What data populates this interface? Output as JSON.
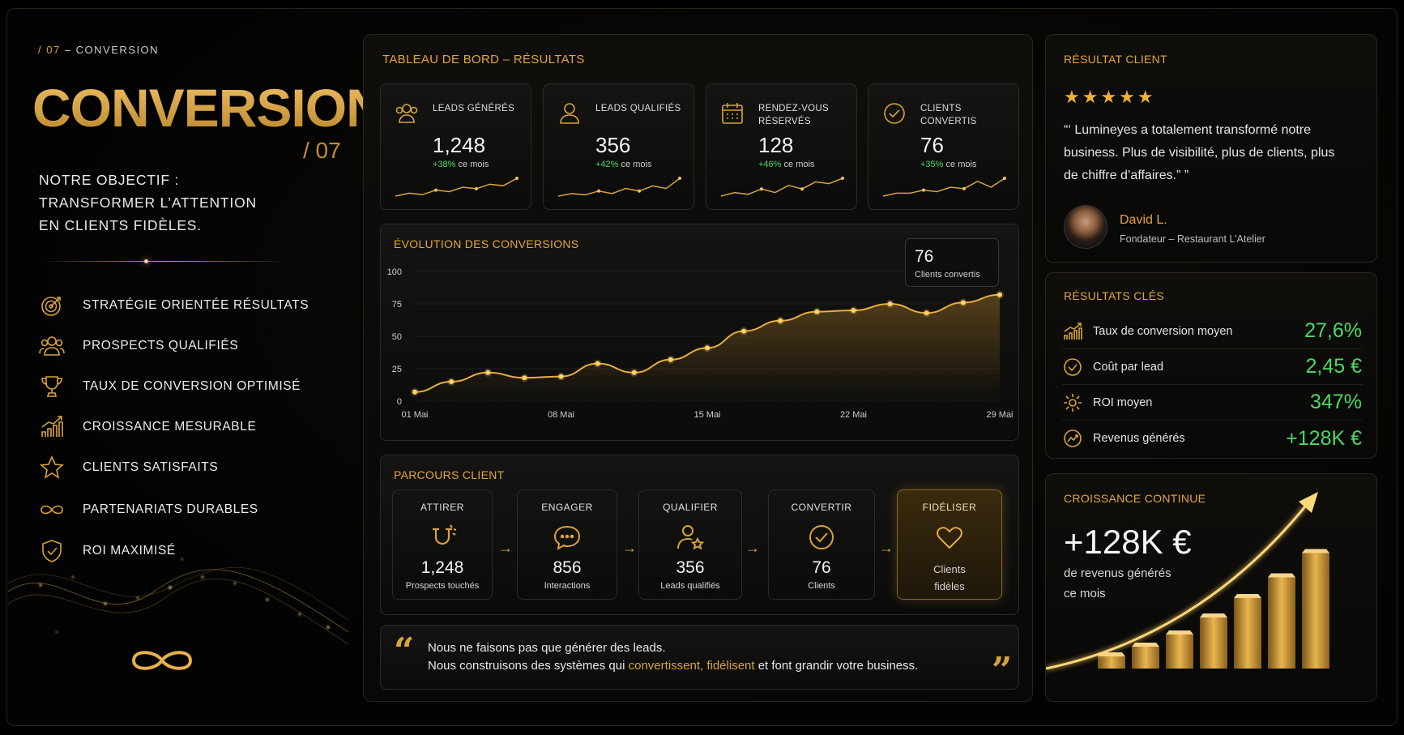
{
  "header": {
    "kicker_num": "/ 07",
    "kicker_text": "– CONVERSION",
    "title": "CONVERSION",
    "title_sub": "/ 07"
  },
  "objective": [
    "NOTRE OBJECTIF :",
    "TRANSFORMER L’ATTENTION",
    "EN CLIENTS FIDÈLES."
  ],
  "features": [
    {
      "label": "STRATÉGIE ORIENTÉE RÉSULTATS",
      "icon": "target-icon"
    },
    {
      "label": "PROSPECTS QUALIFIÉS",
      "icon": "users-icon"
    },
    {
      "label": "TAUX DE CONVERSION OPTIMISÉ",
      "icon": "trophy-icon"
    },
    {
      "label": "CROISSANCE MESURABLE",
      "icon": "growth-chart-icon"
    },
    {
      "label": "CLIENTS SATISFAITS",
      "icon": "star-icon"
    },
    {
      "label": "PARTENARIATS DURABLES",
      "icon": "infinity-icon"
    },
    {
      "label": "ROI MAXIMISÉ",
      "icon": "shield-check-icon"
    }
  ],
  "dashboard": {
    "title": "TABLEAU DE BORD – RÉSULTATS",
    "kpis": [
      {
        "label": "LEADS GÉNÉRÉS",
        "value": "1,248",
        "pct": "+38%",
        "suffix": "ce mois",
        "icon": "users-icon",
        "spark": [
          3,
          4,
          3.5,
          5,
          4.5,
          6,
          5.5,
          7,
          6.5,
          9
        ]
      },
      {
        "label": "LEADS QUALIFIÉS",
        "value": "356",
        "pct": "+42%",
        "suffix": "ce mois",
        "icon": "user-icon",
        "spark": [
          2,
          3,
          2.5,
          4,
          3,
          5,
          4,
          6,
          5,
          9
        ]
      },
      {
        "label": "RENDEZ-VOUS RÉSERVÉS",
        "value": "128",
        "pct": "+46%",
        "suffix": "ce mois",
        "icon": "calendar-icon",
        "spark": [
          3,
          4,
          3.5,
          5,
          4,
          6,
          5,
          7,
          6.5,
          8
        ]
      },
      {
        "label": "CLIENTS CONVERTIS",
        "value": "76",
        "pct": "+35%",
        "suffix": "ce mois",
        "icon": "check-circle-icon",
        "spark": [
          2,
          3,
          3,
          4,
          3.5,
          5,
          4.5,
          7,
          5,
          8
        ]
      }
    ],
    "evolution": {
      "title": "ÉVOLUTION DES CONVERSIONS",
      "tooltip_value": "76",
      "tooltip_label": "Clients convertis"
    },
    "parcours": {
      "title": "PARCOURS CLIENT",
      "steps": [
        {
          "title": "ATTIRER",
          "value": "1,248",
          "sub": "Prospects touchés",
          "icon": "magnet-icon"
        },
        {
          "title": "ENGAGER",
          "value": "856",
          "sub": "Interactions",
          "icon": "chat-icon"
        },
        {
          "title": "QUALIFIER",
          "value": "356",
          "sub": "Leads qualifiés",
          "icon": "user-star-icon"
        },
        {
          "title": "CONVERTIR",
          "value": "76",
          "sub": "Clients",
          "icon": "check-circle-icon"
        },
        {
          "title": "FIDÉLISER",
          "value": "Clients",
          "sub": "fidèles",
          "icon": "heart-icon"
        }
      ]
    },
    "quote": {
      "line1": "Nous ne faisons pas que générer des leads.",
      "line2_a": "Nous construisons des systèmes qui ",
      "line2_h1": "convertissent",
      "line2_sep": ", ",
      "line2_h2": "fidélisent",
      "line2_b": " et font grandir votre business."
    }
  },
  "testimonial": {
    "title": "RÉSULTAT CLIENT",
    "stars": 5,
    "quote": "“‘ Lumineyes a totalement transformé notre business. Plus de visibilité, plus de clients, plus de chiffre d’affaires.” ”",
    "author": "David L.",
    "role": "Fondateur – Restaurant L’Atelier"
  },
  "key_results": {
    "title": "RÉSULTATS CLÉS",
    "rows": [
      {
        "label": "Taux de conversion moyen",
        "value": "27,6%",
        "icon": "bar-growth-icon"
      },
      {
        "label": "Coût par lead",
        "value": "2,45 €",
        "icon": "check-circle-icon"
      },
      {
        "label": "ROI moyen",
        "value": "347%",
        "icon": "gear-icon"
      },
      {
        "label": "Revenus générés",
        "value": "+128K €",
        "icon": "trend-icon"
      }
    ]
  },
  "growth": {
    "title": "CROISSANCE CONTINUE",
    "value": "+128K €",
    "sub1": "de revenus générés",
    "sub2": "ce mois",
    "bars": [
      0.1,
      0.18,
      0.28,
      0.42,
      0.58,
      0.75,
      0.95
    ]
  },
  "colors": {
    "accent": "#d9a33a",
    "positive": "#4cd964",
    "background": "#000000"
  },
  "chart_data": {
    "type": "line",
    "title": "ÉVOLUTION DES CONVERSIONS",
    "x": [
      "01 Mai",
      "03 Mai",
      "05 Mai",
      "07 Mai",
      "08 Mai",
      "10 Mai",
      "12 Mai",
      "13 Mai",
      "15 Mai",
      "17 Mai",
      "19 Mai",
      "21 Mai",
      "22 Mai",
      "24 Mai",
      "26 Mai",
      "28 Mai",
      "29 Mai"
    ],
    "x_ticks": [
      "01 Mai",
      "08 Mai",
      "15 Mai",
      "22 Mai",
      "29 Mai"
    ],
    "values": [
      7,
      15,
      22,
      18,
      19,
      29,
      22,
      32,
      41,
      54,
      62,
      69,
      70,
      75,
      68,
      76,
      82
    ],
    "y_ticks": [
      "0",
      "25",
      "50",
      "75",
      "100"
    ],
    "ylim": [
      0,
      100
    ],
    "xlabel": "",
    "ylabel": ""
  }
}
